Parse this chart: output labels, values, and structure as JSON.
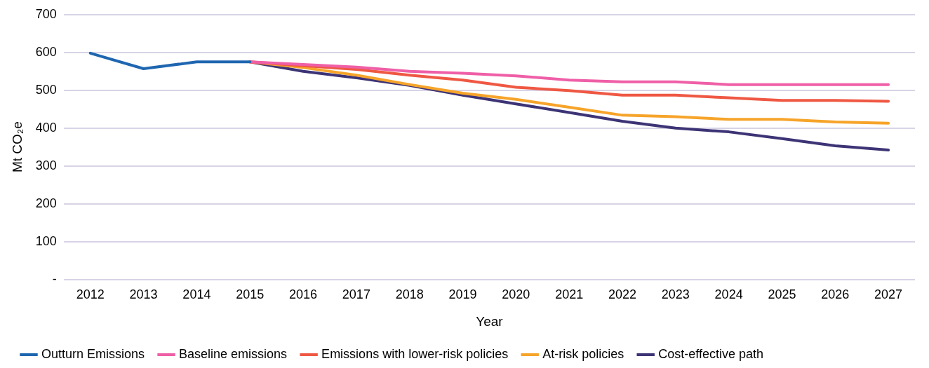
{
  "chart_data": {
    "type": "line",
    "xlabel": "Year",
    "ylabel": "Mt CO₂e",
    "categories": [
      "2012",
      "2013",
      "2014",
      "2015",
      "2016",
      "2017",
      "2018",
      "2019",
      "2020",
      "2021",
      "2022",
      "2023",
      "2024",
      "2025",
      "2026",
      "2027"
    ],
    "series": [
      {
        "name": "Outturn Emissions",
        "color": "#1f66b0",
        "values": [
          598,
          557,
          575,
          575,
          null,
          null,
          null,
          null,
          null,
          null,
          null,
          null,
          null,
          null,
          null,
          null
        ]
      },
      {
        "name": "Baseline emissions",
        "color": "#ef5fa7",
        "values": [
          null,
          null,
          null,
          575,
          568,
          561,
          550,
          545,
          538,
          527,
          522,
          522,
          515,
          515,
          515,
          515
        ]
      },
      {
        "name": "Emissions with lower-risk policies",
        "color": "#ef5843",
        "values": [
          null,
          null,
          null,
          575,
          565,
          555,
          540,
          527,
          508,
          499,
          487,
          487,
          480,
          473,
          473,
          471
        ]
      },
      {
        "name": "At-risk policies",
        "color": "#f6a42a",
        "values": [
          null,
          null,
          null,
          575,
          560,
          540,
          515,
          492,
          476,
          455,
          434,
          430,
          423,
          423,
          416,
          413
        ]
      },
      {
        "name": "Cost-effective path",
        "color": "#3d3476",
        "values": [
          null,
          null,
          null,
          575,
          550,
          533,
          513,
          487,
          464,
          441,
          418,
          400,
          390,
          372,
          353,
          342
        ]
      }
    ],
    "ylim": [
      0,
      700
    ],
    "yticks": [
      {
        "value": 0,
        "label": "-"
      },
      100,
      200,
      300,
      400,
      500,
      600,
      700
    ],
    "grid": "y",
    "legend": "bottom",
    "marker": "none",
    "line_style": "solid"
  }
}
